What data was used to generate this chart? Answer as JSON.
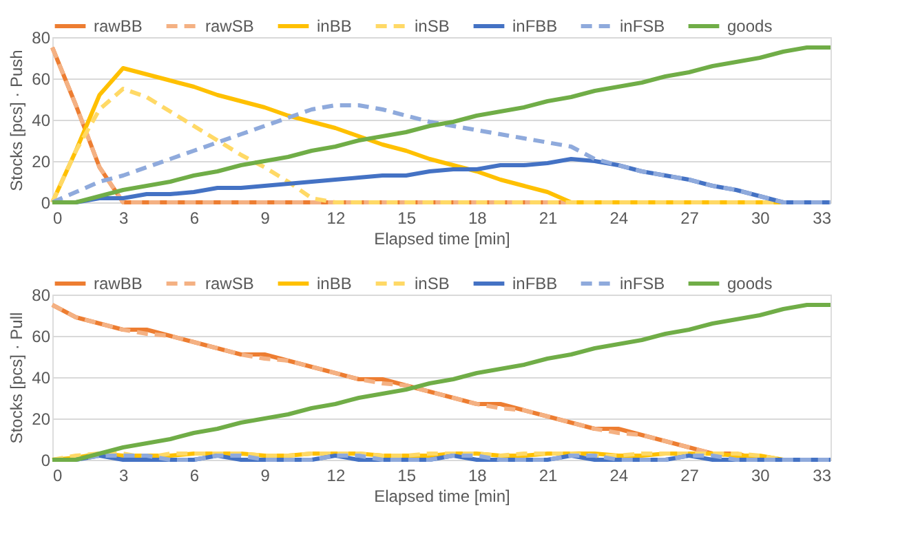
{
  "chart_data": [
    {
      "type": "line",
      "xlabel": "Elapsed time [min]",
      "ylabel": "Stocks [pcs] · Push",
      "x": [
        0,
        1,
        2,
        3,
        4,
        5,
        6,
        7,
        8,
        9,
        10,
        11,
        12,
        13,
        14,
        15,
        16,
        17,
        18,
        19,
        20,
        21,
        22,
        23,
        24,
        25,
        26,
        27,
        28,
        29,
        30,
        31,
        32,
        33
      ],
      "xlim": [
        0,
        33
      ],
      "xticks": [
        0,
        3,
        6,
        9,
        12,
        15,
        18,
        21,
        24,
        27,
        30,
        33
      ],
      "ylim": [
        0,
        80
      ],
      "yticks": [
        0,
        20,
        40,
        60,
        80
      ],
      "grid": "y",
      "legend": "top",
      "series": [
        {
          "name": "rawBB",
          "color": "#ed7d31",
          "line_style": "solid",
          "values": [
            75,
            47,
            17,
            0,
            0,
            0,
            0,
            0,
            0,
            0,
            0,
            0,
            0,
            0,
            0,
            0,
            0,
            0,
            0,
            0,
            0,
            0,
            0,
            0,
            null,
            null,
            null,
            null,
            null,
            null,
            null,
            null,
            null,
            null
          ]
        },
        {
          "name": "rawSB",
          "color": "#f4b183",
          "line_style": "dashed",
          "values": [
            75,
            47,
            17,
            0,
            0,
            0,
            0,
            0,
            0,
            0,
            0,
            0,
            0,
            0,
            0,
            0,
            0,
            0,
            0,
            0,
            0,
            0,
            0,
            0,
            0,
            0,
            0,
            0,
            0,
            0,
            0,
            0,
            0,
            0
          ]
        },
        {
          "name": "inBB",
          "color": "#ffc000",
          "line_style": "solid",
          "values": [
            0,
            25,
            52,
            65,
            62,
            59,
            56,
            52,
            49,
            46,
            42,
            39,
            36,
            32,
            28,
            25,
            21,
            18,
            15,
            11,
            8,
            5,
            0,
            0,
            0,
            0,
            0,
            0,
            0,
            0,
            0,
            0,
            0,
            0
          ]
        },
        {
          "name": "inSB",
          "color": "#ffd966",
          "line_style": "dashed",
          "values": [
            0,
            25,
            45,
            55,
            51,
            44,
            37,
            30,
            23,
            17,
            10,
            2,
            0,
            0,
            0,
            0,
            0,
            0,
            0,
            0,
            0,
            0,
            0,
            0,
            0,
            0,
            0,
            0,
            0,
            0,
            0,
            0,
            0,
            0
          ]
        },
        {
          "name": "inFBB",
          "color": "#4472c4",
          "line_style": "solid",
          "values": [
            0,
            0,
            2,
            2,
            4,
            4,
            5,
            7,
            7,
            8,
            9,
            10,
            11,
            12,
            13,
            13,
            15,
            16,
            16,
            18,
            18,
            19,
            21,
            20,
            18,
            15,
            13,
            11,
            8,
            6,
            3,
            0,
            0,
            0
          ]
        },
        {
          "name": "inFSB",
          "color": "#8faadc",
          "line_style": "dashed",
          "values": [
            0,
            5,
            10,
            13,
            17,
            21,
            25,
            29,
            33,
            37,
            41,
            45,
            47,
            47,
            45,
            42,
            39,
            37,
            35,
            33,
            31,
            29,
            27,
            21,
            18,
            15,
            13,
            11,
            8,
            6,
            3,
            0,
            0,
            0
          ]
        },
        {
          "name": "goods",
          "color": "#70ad47",
          "line_style": "solid",
          "values": [
            0,
            0,
            3,
            6,
            8,
            10,
            13,
            15,
            18,
            20,
            22,
            25,
            27,
            30,
            32,
            34,
            37,
            39,
            42,
            44,
            46,
            49,
            51,
            54,
            56,
            58,
            61,
            63,
            66,
            68,
            70,
            73,
            75,
            75
          ]
        }
      ]
    },
    {
      "type": "line",
      "xlabel": "Elapsed time [min]",
      "ylabel": "Stocks [pcs] · Pull",
      "x": [
        0,
        1,
        2,
        3,
        4,
        5,
        6,
        7,
        8,
        9,
        10,
        11,
        12,
        13,
        14,
        15,
        16,
        17,
        18,
        19,
        20,
        21,
        22,
        23,
        24,
        25,
        26,
        27,
        28,
        29,
        30,
        31,
        32,
        33
      ],
      "xlim": [
        0,
        33
      ],
      "xticks": [
        0,
        3,
        6,
        9,
        12,
        15,
        18,
        21,
        24,
        27,
        30,
        33
      ],
      "ylim": [
        0,
        80
      ],
      "yticks": [
        0,
        20,
        40,
        60,
        80
      ],
      "grid": "y",
      "legend": "top",
      "series": [
        {
          "name": "rawBB",
          "color": "#ed7d31",
          "line_style": "solid",
          "values": [
            75,
            69,
            66,
            63,
            63,
            60,
            57,
            54,
            51,
            51,
            48,
            45,
            42,
            39,
            39,
            36,
            33,
            30,
            27,
            27,
            24,
            21,
            18,
            15,
            15,
            12,
            9,
            6,
            3,
            3,
            0,
            0,
            null,
            null
          ]
        },
        {
          "name": "rawSB",
          "color": "#f4b183",
          "line_style": "dashed",
          "values": [
            75,
            69,
            66,
            63,
            61,
            60,
            57,
            54,
            51,
            49,
            48,
            45,
            42,
            39,
            37,
            36,
            33,
            30,
            27,
            25,
            24,
            21,
            18,
            15,
            13,
            12,
            9,
            6,
            3,
            2,
            0,
            0,
            0,
            0
          ]
        },
        {
          "name": "inBB",
          "color": "#ffc000",
          "line_style": "solid",
          "values": [
            0,
            1,
            3,
            2,
            2,
            2,
            3,
            3,
            3,
            2,
            2,
            3,
            3,
            3,
            2,
            2,
            2,
            3,
            3,
            2,
            2,
            3,
            3,
            3,
            2,
            2,
            3,
            3,
            3,
            2,
            2,
            0,
            0,
            0
          ]
        },
        {
          "name": "inSB",
          "color": "#ffd966",
          "line_style": "dashed",
          "values": [
            0,
            2,
            3,
            3,
            1,
            3,
            3,
            3,
            3,
            2,
            2,
            3,
            3,
            3,
            2,
            2,
            3,
            3,
            3,
            2,
            3,
            3,
            3,
            2,
            2,
            3,
            3,
            3,
            3,
            3,
            2,
            0,
            0,
            0
          ]
        },
        {
          "name": "inFBB",
          "color": "#4472c4",
          "line_style": "solid",
          "values": [
            0,
            0,
            2,
            0,
            0,
            0,
            0,
            2,
            0,
            0,
            0,
            0,
            2,
            0,
            0,
            0,
            0,
            2,
            0,
            0,
            0,
            0,
            2,
            0,
            0,
            0,
            0,
            2,
            0,
            0,
            0,
            0,
            0,
            0
          ]
        },
        {
          "name": "inFSB",
          "color": "#8faadc",
          "line_style": "dashed",
          "values": [
            0,
            0,
            2,
            2,
            2,
            0,
            0,
            2,
            2,
            0,
            0,
            0,
            2,
            2,
            0,
            0,
            0,
            2,
            2,
            0,
            0,
            0,
            2,
            2,
            0,
            0,
            0,
            2,
            2,
            0,
            0,
            0,
            0,
            0
          ]
        },
        {
          "name": "goods",
          "color": "#70ad47",
          "line_style": "solid",
          "values": [
            0,
            0,
            3,
            6,
            8,
            10,
            13,
            15,
            18,
            20,
            22,
            25,
            27,
            30,
            32,
            34,
            37,
            39,
            42,
            44,
            46,
            49,
            51,
            54,
            56,
            58,
            61,
            63,
            66,
            68,
            70,
            73,
            75,
            75
          ]
        }
      ]
    }
  ]
}
